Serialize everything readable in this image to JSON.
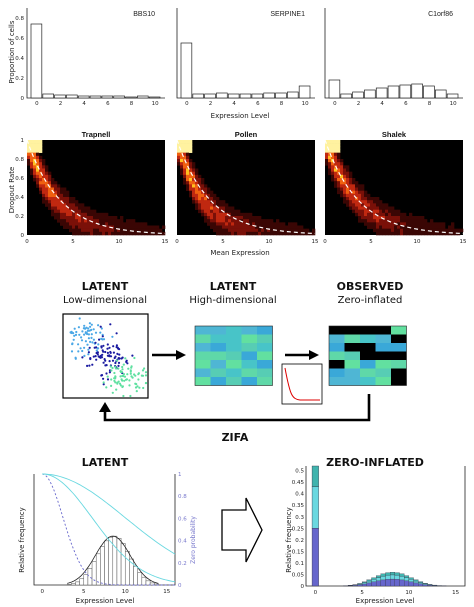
{
  "chart_data": [
    {
      "type": "bar",
      "panel": "histograms",
      "ylabel": "Proportion of cells",
      "xlabel": "Expression Level",
      "x_ticks": [
        "0",
        "2",
        "4",
        "6",
        "8",
        "10"
      ],
      "y_ticks": [
        "0",
        "0.2",
        "0.4",
        "0.6",
        "0.8"
      ],
      "ylim": [
        0,
        0.9
      ],
      "series": [
        {
          "name": "BBS10",
          "values": [
            0.74,
            0.04,
            0.03,
            0.03,
            0.02,
            0.02,
            0.02,
            0.02,
            0.01,
            0.02,
            0.01
          ]
        },
        {
          "name": "SERPINE1",
          "values": [
            0.55,
            0.04,
            0.04,
            0.05,
            0.04,
            0.04,
            0.04,
            0.05,
            0.05,
            0.06,
            0.12
          ]
        },
        {
          "name": "C1orf86",
          "values": [
            0.18,
            0.04,
            0.06,
            0.08,
            0.1,
            0.12,
            0.13,
            0.14,
            0.12,
            0.08,
            0.04
          ]
        }
      ]
    },
    {
      "type": "heatmap",
      "panel": "dropout",
      "ylabel": "Dropout Rate",
      "xlabel": "Mean Expression",
      "x_ticks": [
        "0",
        "5",
        "10",
        "15"
      ],
      "y_ticks": [
        "0",
        "0.2",
        "0.4",
        "0.6",
        "0.8",
        "1"
      ],
      "xlim": [
        0,
        15
      ],
      "ylim": [
        0,
        1
      ],
      "series": [
        {
          "name": "Trapnell"
        },
        {
          "name": "Pollen"
        },
        {
          "name": "Shalek"
        }
      ]
    },
    {
      "type": "line",
      "panel": "latent",
      "title": "LATENT",
      "xlabel": "Expression Level",
      "ylabel": "Relative frequency",
      "y2label": "Zero probability",
      "x_ticks": [
        "0",
        "5",
        "10",
        "15"
      ],
      "y2_ticks": [
        "0",
        "0.2",
        "0.4",
        "0.6",
        "0.8",
        "1"
      ],
      "xlim": [
        -1,
        16
      ],
      "ylim": [
        0,
        1
      ],
      "hist_values": [
        0.001,
        0.003,
        0.006,
        0.012,
        0.02,
        0.032,
        0.045,
        0.06,
        0.074,
        0.085,
        0.092,
        0.094,
        0.09,
        0.08,
        0.065,
        0.05,
        0.036,
        0.024,
        0.015,
        0.008,
        0.004,
        0.002
      ],
      "hist_x_start": 3.0,
      "hist_bin": 0.5,
      "curve_scales": [
        2.5,
        6.0,
        10.0
      ]
    },
    {
      "type": "bar",
      "panel": "zero-inflated",
      "title": "ZERO-INFLATED",
      "xlabel": "Expression Level",
      "ylabel": "Relative frequency",
      "x_ticks": [
        "0",
        "5",
        "10",
        "15"
      ],
      "y_ticks": [
        "0",
        "0.05",
        "0.1",
        "0.15",
        "0.2",
        "0.25",
        "0.3",
        "0.35",
        "0.4",
        "0.45",
        "0.5"
      ],
      "xlim": [
        -1,
        16
      ],
      "ylim": [
        0,
        0.52
      ],
      "zero_stack": [
        0.25,
        0.18,
        0.09
      ],
      "hist_x_start": 3.0,
      "hist_bin": 0.5,
      "hist_values": [
        0.001,
        0.003,
        0.006,
        0.011,
        0.018,
        0.027,
        0.036,
        0.045,
        0.053,
        0.058,
        0.06,
        0.058,
        0.053,
        0.045,
        0.036,
        0.027,
        0.019,
        0.012,
        0.007,
        0.004,
        0.002,
        0.001
      ]
    }
  ],
  "schematic": {
    "latent_low": {
      "title": "LATENT",
      "subtitle": "Low-dimensional"
    },
    "latent_high": {
      "title": "LATENT",
      "subtitle": "High-dimensional"
    },
    "observed": {
      "title": "OBSERVED",
      "subtitle": "Zero-inflated"
    },
    "label": "ZIFA"
  },
  "colors": {
    "dark_blue": "#1a1aa0",
    "light_blue": "#4aa7e6",
    "green": "#5ee0a0",
    "cyan": "#6ad8e0",
    "purple": "#6666cc",
    "teal": "#40b4ae"
  }
}
